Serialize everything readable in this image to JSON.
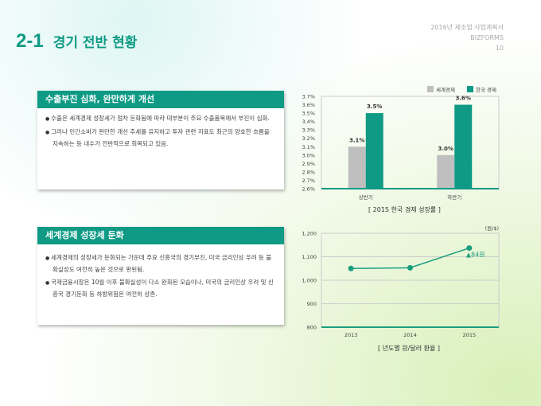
{
  "header": {
    "number": "2-1",
    "title": "경기 전반 현황",
    "doc_title": "2016년 제조업 사업계획서",
    "brand": "BIZFORMS",
    "page": "10"
  },
  "cards": [
    {
      "heading": "수출부진 심화, 완만하게 개선",
      "bullets": [
        "수출은 세계경제 성장세가 점차 둔화됨에 따라 대부분이 주요 수출품목에서 부진이 심화.",
        "그러나 민간소비가 완만한 개선 추세를 유지하고 투자 관련 지표도 최근의 양호한 흐름을 지속하는 등 내수가 전반적으로 회복되고 있음."
      ]
    },
    {
      "heading": "세계경제 성장세 둔화",
      "bullets": [
        "세계경제의 성장세가 둔화되는 가운데 주요 신흥국의 경기부진, 미국 금리인상 우려 등 불확실성도 여전히 높은 것으로 판된됨.",
        "국제금융시장은 10월 이후 불확실성이 다소 완화된 모습이나, 미국의 금리인상 우려 및 신흥국 경기둔화 등 하방위험은 여전히 상존."
      ]
    }
  ],
  "chart_data": [
    {
      "type": "bar",
      "title": "[ 2015 한국 경제 성장률 ]",
      "categories": [
        "상반기",
        "하반기"
      ],
      "series": [
        {
          "name": "세계경제",
          "color": "#bfbfbf",
          "values": [
            3.1,
            3.0
          ],
          "labels": [
            "3.1%",
            "3.0%"
          ]
        },
        {
          "name": "한국 경제",
          "color": "#0e9a84",
          "values": [
            3.5,
            3.6
          ],
          "labels": [
            "3.5%",
            "3.6%"
          ]
        }
      ],
      "ylim": [
        2.6,
        3.7
      ],
      "yticks": [
        "2.6%",
        "2.7%",
        "2.8%",
        "2.9%",
        "3.0%",
        "3.1%",
        "3.2%",
        "3.3%",
        "3.4%",
        "3.5%",
        "3.6%",
        "3.7%"
      ],
      "legend": "top-right"
    },
    {
      "type": "line",
      "title": "[ 년도별 원/달러 환율 ]",
      "unit": "(원/$)",
      "categories": [
        "2013",
        "2014",
        "2015"
      ],
      "values": [
        1050,
        1053,
        1137
      ],
      "ylim": [
        800,
        1200
      ],
      "yticks": [
        "800",
        "900",
        "1,000",
        "1,100",
        "1,200"
      ],
      "annotation": "▲84원",
      "color": "#1a9e80"
    }
  ]
}
